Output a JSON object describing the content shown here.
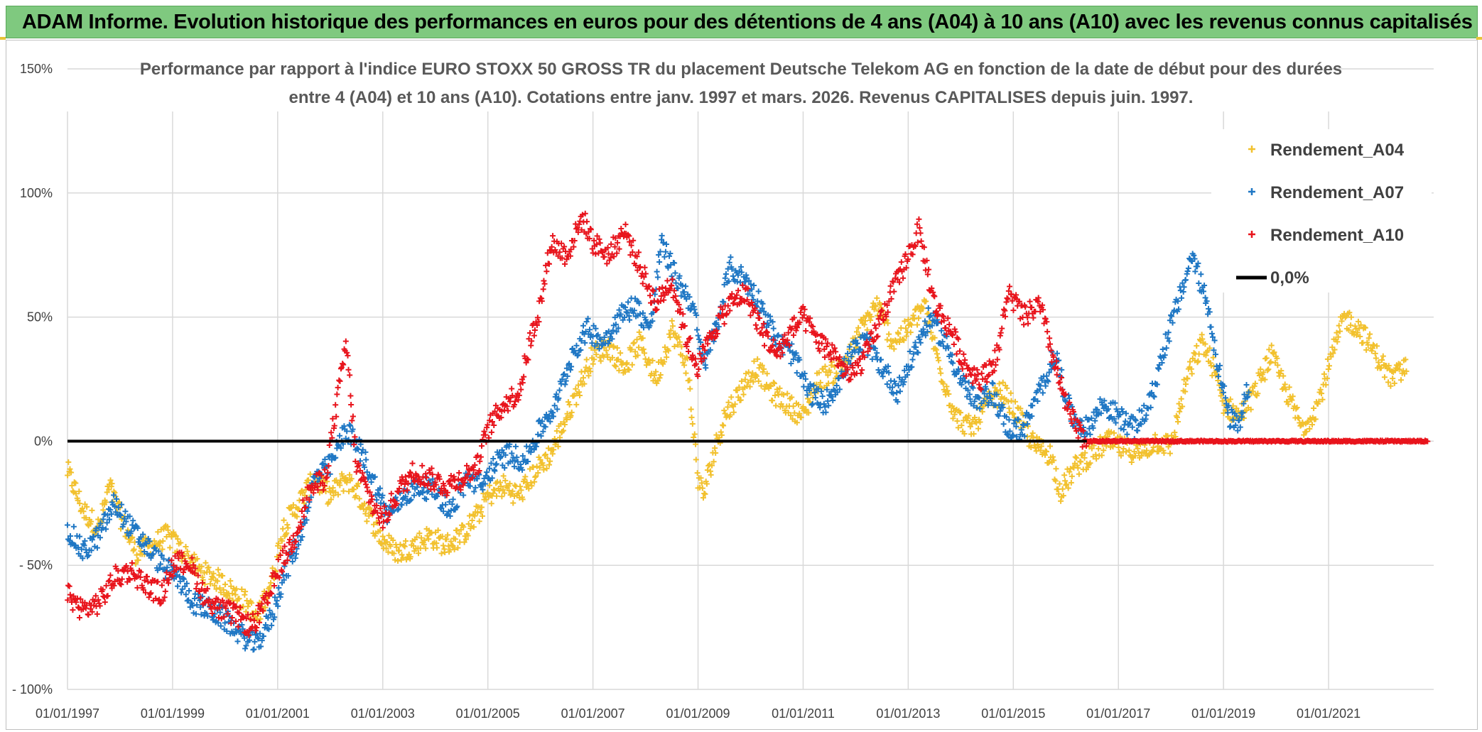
{
  "banner": {
    "title": "ADAM Informe. Evolution historique des performances en euros pour des détentions de 4 ans (A04) à 10 ans (A10) avec les revenus connus capitalisés"
  },
  "chart_data": {
    "type": "scatter",
    "title_line1": "Performance par rapport à l'indice EURO STOXX 50 GROSS TR  du placement Deutsche Telekom AG en fonction de la date de début pour des durées",
    "title_line2": "entre 4 (A04) et 10 ans (A10). Cotations entre janv. 1997 et mars. 2026. Revenus CAPITALISES depuis juin. 1997.",
    "xlim": [
      1997.0,
      2023.0
    ],
    "ylim": [
      -100,
      150
    ],
    "y_ticks": [
      {
        "value": 150,
        "label": "150%"
      },
      {
        "value": 100,
        "label": "100%"
      },
      {
        "value": 50,
        "label": "50%"
      },
      {
        "value": 0,
        "label": "0%"
      },
      {
        "value": -50,
        "label": "- 50%"
      },
      {
        "value": -100,
        "label": "- 100%"
      }
    ],
    "x_ticks": [
      {
        "value": 1997,
        "label": "01/01/1997"
      },
      {
        "value": 1999,
        "label": "01/01/1999"
      },
      {
        "value": 2001,
        "label": "01/01/2001"
      },
      {
        "value": 2003,
        "label": "01/01/2003"
      },
      {
        "value": 2005,
        "label": "01/01/2005"
      },
      {
        "value": 2007,
        "label": "01/01/2007"
      },
      {
        "value": 2009,
        "label": "01/01/2009"
      },
      {
        "value": 2011,
        "label": "01/01/2011"
      },
      {
        "value": 2013,
        "label": "01/01/2013"
      },
      {
        "value": 2015,
        "label": "01/01/2015"
      },
      {
        "value": 2017,
        "label": "01/01/2017"
      },
      {
        "value": 2019,
        "label": "01/01/2019"
      },
      {
        "value": 2021,
        "label": "01/01/2021"
      }
    ],
    "legend": [
      {
        "name": "Rendement_A04",
        "color": "#f2c12e",
        "marker": "+"
      },
      {
        "name": "Rendement_A07",
        "color": "#1f77c4",
        "marker": "+"
      },
      {
        "name": "Rendement_A10",
        "color": "#e8141c",
        "marker": "+"
      },
      {
        "name": "0,0%",
        "color": "#000000",
        "marker": "line"
      }
    ],
    "legend_position": "top-right",
    "series": [
      {
        "name": "Rendement_A04",
        "color": "#f2c12e",
        "points": [
          [
            1997.0,
            -12
          ],
          [
            1997.3,
            -28
          ],
          [
            1997.6,
            -35
          ],
          [
            1997.8,
            -18
          ],
          [
            1998.0,
            -30
          ],
          [
            1998.3,
            -45
          ],
          [
            1998.6,
            -42
          ],
          [
            1998.9,
            -38
          ],
          [
            1999.2,
            -45
          ],
          [
            1999.5,
            -52
          ],
          [
            1999.8,
            -55
          ],
          [
            2000.1,
            -60
          ],
          [
            2000.4,
            -65
          ],
          [
            2000.6,
            -72
          ],
          [
            2000.9,
            -55
          ],
          [
            2001.1,
            -35
          ],
          [
            2001.4,
            -25
          ],
          [
            2001.7,
            -15
          ],
          [
            2002.0,
            -22
          ],
          [
            2002.3,
            -15
          ],
          [
            2002.5,
            -20
          ],
          [
            2002.8,
            -32
          ],
          [
            2003.0,
            -40
          ],
          [
            2003.3,
            -45
          ],
          [
            2003.6,
            -42
          ],
          [
            2003.9,
            -38
          ],
          [
            2004.2,
            -42
          ],
          [
            2004.5,
            -38
          ],
          [
            2004.8,
            -30
          ],
          [
            2005.0,
            -22
          ],
          [
            2005.3,
            -18
          ],
          [
            2005.6,
            -22
          ],
          [
            2005.9,
            -12
          ],
          [
            2006.2,
            -5
          ],
          [
            2006.5,
            10
          ],
          [
            2006.8,
            25
          ],
          [
            2007.0,
            35
          ],
          [
            2007.3,
            38
          ],
          [
            2007.6,
            30
          ],
          [
            2007.9,
            40
          ],
          [
            2008.2,
            25
          ],
          [
            2008.5,
            45
          ],
          [
            2008.8,
            30
          ],
          [
            2009.0,
            -15
          ],
          [
            2009.1,
            -22
          ],
          [
            2009.3,
            -5
          ],
          [
            2009.5,
            10
          ],
          [
            2009.8,
            20
          ],
          [
            2010.1,
            30
          ],
          [
            2010.4,
            20
          ],
          [
            2010.7,
            15
          ],
          [
            2011.0,
            10
          ],
          [
            2011.3,
            25
          ],
          [
            2011.6,
            28
          ],
          [
            2011.9,
            35
          ],
          [
            2012.1,
            45
          ],
          [
            2012.4,
            55
          ],
          [
            2012.7,
            40
          ],
          [
            2013.0,
            45
          ],
          [
            2013.3,
            55
          ],
          [
            2013.6,
            30
          ],
          [
            2013.9,
            10
          ],
          [
            2014.2,
            5
          ],
          [
            2014.5,
            15
          ],
          [
            2014.8,
            20
          ],
          [
            2015.1,
            10
          ],
          [
            2015.4,
            -2
          ],
          [
            2015.7,
            -5
          ],
          [
            2015.9,
            -20
          ],
          [
            2016.2,
            -10
          ],
          [
            2016.5,
            -5
          ],
          [
            2016.8,
            0
          ],
          [
            2017.1,
            -3
          ],
          [
            2017.4,
            -5
          ],
          [
            2017.7,
            0
          ],
          [
            2018.0,
            -2
          ],
          [
            2018.3,
            25
          ],
          [
            2018.6,
            40
          ],
          [
            2018.8,
            30
          ],
          [
            2019.0,
            15
          ],
          [
            2019.3,
            10
          ],
          [
            2019.6,
            20
          ],
          [
            2019.9,
            35
          ],
          [
            2020.2,
            20
          ],
          [
            2020.5,
            5
          ],
          [
            2020.8,
            15
          ],
          [
            2021.0,
            30
          ],
          [
            2021.3,
            50
          ],
          [
            2021.6,
            45
          ],
          [
            2021.9,
            35
          ],
          [
            2022.2,
            25
          ],
          [
            2022.5,
            30
          ]
        ]
      },
      {
        "name": "Rendement_A07",
        "color": "#1f77c4",
        "points": [
          [
            1997.0,
            -35
          ],
          [
            1997.3,
            -45
          ],
          [
            1997.6,
            -38
          ],
          [
            1997.9,
            -25
          ],
          [
            1998.2,
            -35
          ],
          [
            1998.5,
            -42
          ],
          [
            1998.8,
            -50
          ],
          [
            1999.1,
            -55
          ],
          [
            1999.4,
            -65
          ],
          [
            1999.7,
            -68
          ],
          [
            2000.0,
            -72
          ],
          [
            2000.3,
            -78
          ],
          [
            2000.6,
            -82
          ],
          [
            2000.9,
            -70
          ],
          [
            2001.1,
            -55
          ],
          [
            2001.4,
            -40
          ],
          [
            2001.7,
            -15
          ],
          [
            2002.0,
            -10
          ],
          [
            2002.3,
            5
          ],
          [
            2002.6,
            -5
          ],
          [
            2002.9,
            -20
          ],
          [
            2003.1,
            -30
          ],
          [
            2003.4,
            -22
          ],
          [
            2003.7,
            -18
          ],
          [
            2004.0,
            -20
          ],
          [
            2004.3,
            -28
          ],
          [
            2004.6,
            -15
          ],
          [
            2004.9,
            -18
          ],
          [
            2005.1,
            -10
          ],
          [
            2005.4,
            -5
          ],
          [
            2005.7,
            -8
          ],
          [
            2006.0,
            5
          ],
          [
            2006.3,
            15
          ],
          [
            2006.6,
            35
          ],
          [
            2006.9,
            45
          ],
          [
            2007.2,
            40
          ],
          [
            2007.5,
            50
          ],
          [
            2007.8,
            55
          ],
          [
            2008.1,
            45
          ],
          [
            2008.3,
            80
          ],
          [
            2008.6,
            65
          ],
          [
            2008.9,
            55
          ],
          [
            2009.1,
            30
          ],
          [
            2009.4,
            50
          ],
          [
            2009.6,
            70
          ],
          [
            2009.9,
            65
          ],
          [
            2010.2,
            55
          ],
          [
            2010.5,
            40
          ],
          [
            2010.8,
            35
          ],
          [
            2011.1,
            20
          ],
          [
            2011.4,
            15
          ],
          [
            2011.7,
            25
          ],
          [
            2011.9,
            35
          ],
          [
            2012.2,
            40
          ],
          [
            2012.5,
            30
          ],
          [
            2012.8,
            20
          ],
          [
            2013.1,
            35
          ],
          [
            2013.4,
            50
          ],
          [
            2013.7,
            40
          ],
          [
            2014.0,
            25
          ],
          [
            2014.3,
            15
          ],
          [
            2014.6,
            20
          ],
          [
            2014.9,
            5
          ],
          [
            2015.2,
            5
          ],
          [
            2015.5,
            20
          ],
          [
            2015.8,
            35
          ],
          [
            2016.1,
            10
          ],
          [
            2016.4,
            5
          ],
          [
            2016.7,
            15
          ],
          [
            2017.0,
            10
          ],
          [
            2017.3,
            5
          ],
          [
            2017.6,
            15
          ],
          [
            2017.9,
            40
          ],
          [
            2018.2,
            60
          ],
          [
            2018.4,
            75
          ],
          [
            2018.7,
            55
          ],
          [
            2018.9,
            30
          ],
          [
            2019.1,
            10
          ],
          [
            2019.3,
            5
          ],
          [
            2019.5,
            25
          ]
        ]
      },
      {
        "name": "Rendement_A10",
        "color": "#e8141c",
        "points": [
          [
            1997.0,
            -62
          ],
          [
            1997.3,
            -68
          ],
          [
            1997.6,
            -65
          ],
          [
            1997.9,
            -55
          ],
          [
            1998.2,
            -52
          ],
          [
            1998.5,
            -58
          ],
          [
            1998.8,
            -62
          ],
          [
            1999.0,
            -50
          ],
          [
            1999.3,
            -48
          ],
          [
            1999.6,
            -62
          ],
          [
            1999.9,
            -68
          ],
          [
            2000.2,
            -70
          ],
          [
            2000.5,
            -75
          ],
          [
            2000.8,
            -65
          ],
          [
            2001.0,
            -52
          ],
          [
            2001.3,
            -40
          ],
          [
            2001.6,
            -20
          ],
          [
            2001.9,
            -15
          ],
          [
            2002.2,
            25
          ],
          [
            2002.3,
            40
          ],
          [
            2002.5,
            -10
          ],
          [
            2002.8,
            -25
          ],
          [
            2003.0,
            -32
          ],
          [
            2003.3,
            -20
          ],
          [
            2003.6,
            -12
          ],
          [
            2003.9,
            -15
          ],
          [
            2004.2,
            -18
          ],
          [
            2004.5,
            -15
          ],
          [
            2004.8,
            -10
          ],
          [
            2005.0,
            5
          ],
          [
            2005.3,
            15
          ],
          [
            2005.6,
            20
          ],
          [
            2005.8,
            40
          ],
          [
            2006.0,
            55
          ],
          [
            2006.2,
            80
          ],
          [
            2006.5,
            75
          ],
          [
            2006.8,
            90
          ],
          [
            2007.0,
            80
          ],
          [
            2007.3,
            75
          ],
          [
            2007.6,
            85
          ],
          [
            2007.9,
            70
          ],
          [
            2008.2,
            55
          ],
          [
            2008.5,
            65
          ],
          [
            2008.8,
            40
          ],
          [
            2009.0,
            30
          ],
          [
            2009.3,
            45
          ],
          [
            2009.6,
            55
          ],
          [
            2009.9,
            60
          ],
          [
            2010.2,
            45
          ],
          [
            2010.5,
            35
          ],
          [
            2010.8,
            45
          ],
          [
            2011.0,
            50
          ],
          [
            2011.3,
            40
          ],
          [
            2011.6,
            35
          ],
          [
            2011.9,
            25
          ],
          [
            2012.2,
            35
          ],
          [
            2012.5,
            50
          ],
          [
            2012.8,
            65
          ],
          [
            2013.0,
            75
          ],
          [
            2013.2,
            85
          ],
          [
            2013.5,
            55
          ],
          [
            2013.8,
            45
          ],
          [
            2014.1,
            30
          ],
          [
            2014.4,
            25
          ],
          [
            2014.7,
            35
          ],
          [
            2014.9,
            60
          ],
          [
            2015.2,
            50
          ],
          [
            2015.5,
            55
          ],
          [
            2015.8,
            30
          ],
          [
            2016.0,
            15
          ],
          [
            2016.2,
            5
          ],
          [
            2016.4,
            0
          ],
          [
            2016.8,
            0
          ],
          [
            2017.3,
            0
          ],
          [
            2017.8,
            0
          ],
          [
            2018.3,
            0
          ],
          [
            2018.8,
            0
          ],
          [
            2019.3,
            0
          ],
          [
            2019.8,
            0
          ],
          [
            2020.3,
            0
          ],
          [
            2020.8,
            0
          ],
          [
            2021.3,
            0
          ],
          [
            2021.8,
            0
          ],
          [
            2022.3,
            0
          ],
          [
            2022.9,
            0
          ]
        ]
      }
    ],
    "zero_line_value": 0
  }
}
